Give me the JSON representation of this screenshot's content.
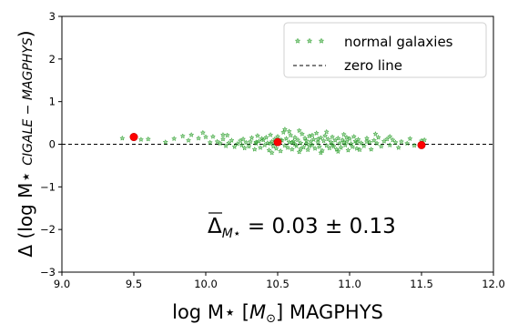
{
  "chart_data": {
    "type": "scatter",
    "xlabel": "log M⋆ [M⊙] MAGPHYS",
    "ylabel": "Δ (log M⋆ CIGALE − MAGPHYS)",
    "xlim": [
      9.0,
      12.0
    ],
    "ylim": [
      -3,
      3
    ],
    "x_ticks": [
      "9.0",
      "9.5",
      "10.0",
      "10.5",
      "11.0",
      "11.5",
      "12.0"
    ],
    "y_ticks": [
      "−3",
      "−2",
      "−1",
      "0",
      "1",
      "2",
      "3"
    ],
    "legend_position": "top-right",
    "legend": [
      "normal galaxies",
      "zero line"
    ],
    "annotation": "Δ̄M⋆ = 0.03 ± 0.13",
    "colors": {
      "normal": "#2ca02c",
      "highlight": "#ff0000",
      "zero_line": "#000000"
    },
    "series": [
      {
        "name": "normal galaxies",
        "marker": "star",
        "points": [
          [
            9.42,
            0.14
          ],
          [
            9.55,
            0.11
          ],
          [
            9.72,
            0.05
          ],
          [
            9.78,
            0.13
          ],
          [
            9.84,
            0.19
          ],
          [
            9.88,
            0.09
          ],
          [
            9.9,
            0.22
          ],
          [
            9.95,
            0.14
          ],
          [
            9.98,
            0.27
          ],
          [
            10.0,
            0.17
          ],
          [
            10.03,
            0.04
          ],
          [
            10.05,
            0.18
          ],
          [
            10.08,
            0.06
          ],
          [
            10.1,
            0.02
          ],
          [
            10.12,
            0.12
          ],
          [
            10.14,
            -0.04
          ],
          [
            10.16,
            0.03
          ],
          [
            10.18,
            0.09
          ],
          [
            10.2,
            -0.06
          ],
          [
            10.22,
            0.01
          ],
          [
            10.24,
            0.08
          ],
          [
            10.25,
            -0.02
          ],
          [
            10.26,
            0.12
          ],
          [
            10.28,
            0.04
          ],
          [
            10.3,
            -0.05
          ],
          [
            10.31,
            0.06
          ],
          [
            10.32,
            0.15
          ],
          [
            10.34,
            -0.12
          ],
          [
            10.35,
            0.02
          ],
          [
            10.36,
            0.2
          ],
          [
            10.37,
            0.07
          ],
          [
            10.38,
            -0.08
          ],
          [
            10.4,
            0.1
          ],
          [
            10.41,
            -0.02
          ],
          [
            10.42,
            0.16
          ],
          [
            10.43,
            0.03
          ],
          [
            10.44,
            -0.14
          ],
          [
            10.45,
            0.22
          ],
          [
            10.46,
            0.06
          ],
          [
            10.47,
            -0.05
          ],
          [
            10.48,
            0.12
          ],
          [
            10.49,
            -0.1
          ],
          [
            10.5,
            0.18
          ],
          [
            10.51,
            0.02
          ],
          [
            10.52,
            -0.16
          ],
          [
            10.53,
            0.09
          ],
          [
            10.54,
            0.28
          ],
          [
            10.55,
            -0.03
          ],
          [
            10.56,
            0.13
          ],
          [
            10.57,
            -0.08
          ],
          [
            10.58,
            0.05
          ],
          [
            10.59,
            0.21
          ],
          [
            10.6,
            -0.12
          ],
          [
            10.61,
            0.07
          ],
          [
            10.62,
            0.16
          ],
          [
            10.63,
            -0.04
          ],
          [
            10.64,
            0.1
          ],
          [
            10.65,
            -0.18
          ],
          [
            10.66,
            0.03
          ],
          [
            10.67,
            0.24
          ],
          [
            10.68,
            -0.07
          ],
          [
            10.69,
            0.14
          ],
          [
            10.7,
            0.01
          ],
          [
            10.71,
            -0.13
          ],
          [
            10.72,
            0.19
          ],
          [
            10.73,
            0.06
          ],
          [
            10.74,
            -0.02
          ],
          [
            10.75,
            0.11
          ],
          [
            10.76,
            -0.1
          ],
          [
            10.77,
            0.26
          ],
          [
            10.78,
            0.04
          ],
          [
            10.79,
            -0.06
          ],
          [
            10.8,
            0.15
          ],
          [
            10.81,
            -0.15
          ],
          [
            10.82,
            0.08
          ],
          [
            10.83,
            0.2
          ],
          [
            10.84,
            -0.03
          ],
          [
            10.85,
            0.12
          ],
          [
            10.86,
            -0.09
          ],
          [
            10.87,
            0.05
          ],
          [
            10.88,
            0.17
          ],
          [
            10.89,
            -0.05
          ],
          [
            10.9,
            0.09
          ],
          [
            10.91,
            -0.12
          ],
          [
            10.92,
            0.14
          ],
          [
            10.93,
            0.02
          ],
          [
            10.94,
            -0.08
          ],
          [
            10.95,
            0.1
          ],
          [
            10.96,
            0.23
          ],
          [
            10.97,
            -0.02
          ],
          [
            10.98,
            0.06
          ],
          [
            10.99,
            -0.14
          ],
          [
            11.0,
            0.13
          ],
          [
            11.01,
            0.01
          ],
          [
            11.02,
            -0.06
          ],
          [
            11.03,
            0.18
          ],
          [
            11.04,
            0.07
          ],
          [
            11.05,
            -0.1
          ],
          [
            11.06,
            0.11
          ],
          [
            11.08,
            0.03
          ],
          [
            11.1,
            -0.04
          ],
          [
            11.12,
            0.14
          ],
          [
            11.14,
            0.05
          ],
          [
            11.15,
            -0.12
          ],
          [
            11.17,
            0.09
          ],
          [
            11.19,
            0.02
          ],
          [
            11.2,
            0.16
          ],
          [
            11.22,
            -0.05
          ],
          [
            11.24,
            0.07
          ],
          [
            11.26,
            0.12
          ],
          [
            11.28,
            -0.02
          ],
          [
            11.3,
            0.1
          ],
          [
            11.32,
            0.04
          ],
          [
            11.34,
            -0.08
          ],
          [
            11.36,
            0.06
          ],
          [
            11.4,
            0.02
          ],
          [
            11.42,
            0.13
          ],
          [
            10.15,
            0.21
          ],
          [
            10.27,
            -0.09
          ],
          [
            10.39,
            0.13
          ],
          [
            10.46,
            -0.2
          ],
          [
            10.58,
            0.3
          ],
          [
            10.66,
            -0.11
          ],
          [
            10.74,
            0.21
          ],
          [
            10.84,
            0.29
          ],
          [
            10.92,
            -0.17
          ],
          [
            11.07,
            -0.13
          ],
          [
            11.18,
            0.24
          ],
          [
            10.55,
            0.35
          ],
          [
            10.65,
            0.32
          ],
          [
            10.8,
            -0.2
          ],
          [
            10.52,
            0.1
          ],
          [
            10.62,
            0.0
          ],
          [
            10.7,
            0.08
          ],
          [
            10.78,
            0.12
          ],
          [
            10.88,
            -0.01
          ],
          [
            10.96,
            0.05
          ],
          [
            11.05,
            0.04
          ],
          [
            10.35,
            0.05
          ],
          [
            10.45,
            0.02
          ],
          [
            10.6,
            0.04
          ],
          [
            10.72,
            -0.04
          ],
          [
            10.98,
            0.16
          ],
          [
            11.12,
            0.06
          ],
          [
            9.6,
            0.12
          ],
          [
            10.12,
            0.22
          ],
          [
            11.28,
            0.18
          ],
          [
            11.45,
            -0.03
          ],
          [
            11.5,
            0.08
          ],
          [
            11.52,
            0.1
          ]
        ]
      },
      {
        "name": "",
        "marker": "circle",
        "points": [
          [
            9.5,
            0.17
          ],
          [
            10.5,
            0.05
          ],
          [
            11.5,
            -0.02
          ]
        ]
      }
    ]
  }
}
